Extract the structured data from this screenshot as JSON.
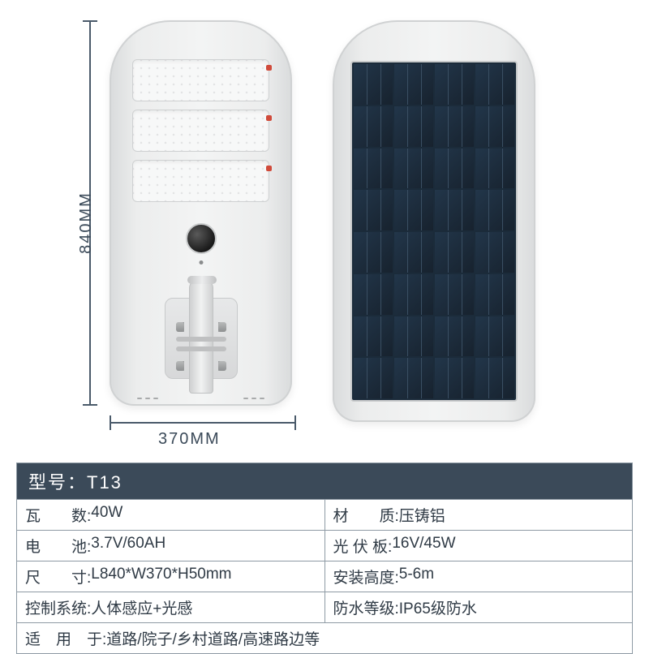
{
  "colors": {
    "header_bg": "#3b4a59",
    "header_text": "#ffffff",
    "border": "#8e9aa4",
    "text": "#2f3a45",
    "dim_line": "#4a5a6a",
    "body_bg_light": "#f3f4f4",
    "body_bg_dark": "#d9dbdc",
    "solar_dark": "#17222e",
    "solar_light": "#22364a",
    "led_dot": "#e3e4e5",
    "red_accent": "#d04a3a"
  },
  "dimensions": {
    "height_label": "840MM",
    "width_label": "370MM"
  },
  "product": {
    "led_rows": 3,
    "solar_cols": 4,
    "solar_rows": 8
  },
  "spec": {
    "header": "型号：T13",
    "rows": [
      {
        "left": {
          "label": "瓦　　数:",
          "value": "40W"
        },
        "right": {
          "label": "材　　质:",
          "value": "压铸铝"
        }
      },
      {
        "left": {
          "label": "电　　池:",
          "value": "3.7V/60AH"
        },
        "right": {
          "label": "光 伏 板:",
          "value": "16V/45W"
        }
      },
      {
        "left": {
          "label": "尺　　寸:",
          "value": "L840*W370*H50mm"
        },
        "right": {
          "label": "安装高度:",
          "value": "5-6m"
        }
      },
      {
        "left": {
          "label": "控制系统:",
          "value": "人体感应+光感"
        },
        "right": {
          "label": "防水等级:",
          "value": "IP65级防水"
        }
      }
    ],
    "footer": {
      "label": "适　用　于:",
      "value": "道路/院子/乡村道路/高速路边等"
    }
  }
}
